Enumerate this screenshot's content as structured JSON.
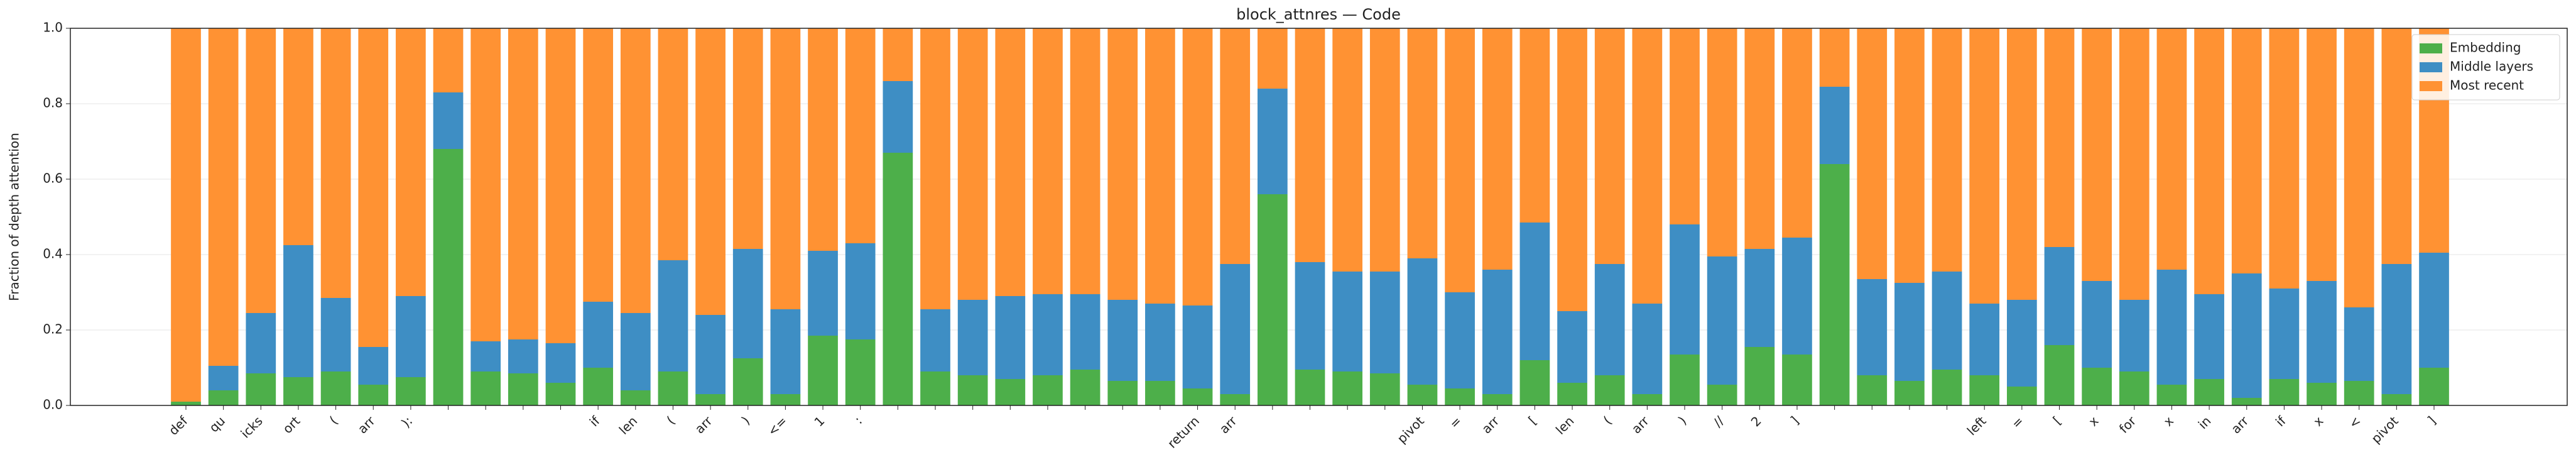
{
  "chart_data": {
    "type": "stacked_bar",
    "title": "block_attnres — Code",
    "y_label": "Fraction of depth attention",
    "categories": [
      "def",
      "qu",
      "icks",
      "ort",
      "(",
      "arr",
      "):",
      null,
      null,
      null,
      null,
      "if",
      "len",
      "(",
      "arr",
      ")",
      "<=",
      "1",
      ":",
      null,
      null,
      null,
      null,
      null,
      null,
      null,
      null,
      "return",
      "arr",
      null,
      null,
      null,
      null,
      "pivot",
      "=",
      "arr",
      "[",
      "len",
      "(",
      "arr",
      ")",
      "//",
      "2",
      "]",
      null,
      null,
      null,
      null,
      "left",
      "=",
      "[",
      "x",
      "for",
      "x",
      "in",
      "arr",
      "if",
      "x",
      "<",
      "pivot",
      "]"
    ],
    "series": [
      {
        "name": "Embedding",
        "color": "#4daf4a",
        "values": [
          0.01,
          0.04,
          0.085,
          0.075,
          0.09,
          0.055,
          0.075,
          0.68,
          0.09,
          0.085,
          0.06,
          0.1,
          0.04,
          0.09,
          0.03,
          0.125,
          0.03,
          0.185,
          0.175,
          0.67,
          0.09,
          0.08,
          0.07,
          0.08,
          0.095,
          0.065,
          0.065,
          0.045,
          0.03,
          0.56,
          0.095,
          0.09,
          0.085,
          0.055,
          0.045,
          0.03,
          0.12,
          0.06,
          0.08,
          0.03,
          0.135,
          0.055,
          0.155,
          0.135,
          0.64,
          0.08,
          0.065,
          0.095,
          0.08,
          0.05,
          0.16,
          0.1,
          0.09,
          0.055,
          0.07,
          0.02,
          0.07,
          0.06,
          0.065,
          0.03,
          0.1
        ]
      },
      {
        "name": "Middle layers",
        "color": "#3e8ec4",
        "values": [
          0.0,
          0.065,
          0.16,
          0.35,
          0.195,
          0.1,
          0.215,
          0.15,
          0.08,
          0.09,
          0.105,
          0.175,
          0.205,
          0.295,
          0.21,
          0.29,
          0.225,
          0.225,
          0.255,
          0.19,
          0.165,
          0.2,
          0.22,
          0.215,
          0.2,
          0.215,
          0.205,
          0.22,
          0.345,
          0.28,
          0.285,
          0.265,
          0.27,
          0.335,
          0.255,
          0.33,
          0.365,
          0.19,
          0.295,
          0.24,
          0.345,
          0.34,
          0.26,
          0.31,
          0.205,
          0.255,
          0.26,
          0.26,
          0.19,
          0.23,
          0.26,
          0.23,
          0.19,
          0.305,
          0.225,
          0.33,
          0.24,
          0.27,
          0.195,
          0.345,
          0.305
        ]
      },
      {
        "name": "Most recent",
        "color": "#ff9233",
        "values": [
          0.99,
          0.895,
          0.755,
          0.575,
          0.715,
          0.845,
          0.71,
          0.17,
          0.83,
          0.825,
          0.835,
          0.725,
          0.755,
          0.615,
          0.76,
          0.585,
          0.745,
          0.59,
          0.57,
          0.14,
          0.745,
          0.72,
          0.71,
          0.705,
          0.705,
          0.72,
          0.73,
          0.735,
          0.625,
          0.16,
          0.62,
          0.645,
          0.645,
          0.61,
          0.7,
          0.64,
          0.515,
          0.75,
          0.625,
          0.73,
          0.52,
          0.605,
          0.585,
          0.555,
          0.155,
          0.665,
          0.675,
          0.645,
          0.73,
          0.72,
          0.58,
          0.67,
          0.72,
          0.64,
          0.705,
          0.65,
          0.69,
          0.67,
          0.74,
          0.625,
          0.595
        ]
      }
    ],
    "ylim": [
      0,
      1
    ],
    "yticks": [
      {
        "value": 0,
        "label": "0.0"
      },
      {
        "value": 0.2,
        "label": "0.2"
      },
      {
        "value": 0.4,
        "label": "0.4"
      },
      {
        "value": 0.6,
        "label": "0.6"
      },
      {
        "value": 0.8,
        "label": "0.8"
      },
      {
        "value": 1,
        "label": "1.0"
      }
    ],
    "grid": true,
    "legend": "upper right"
  }
}
